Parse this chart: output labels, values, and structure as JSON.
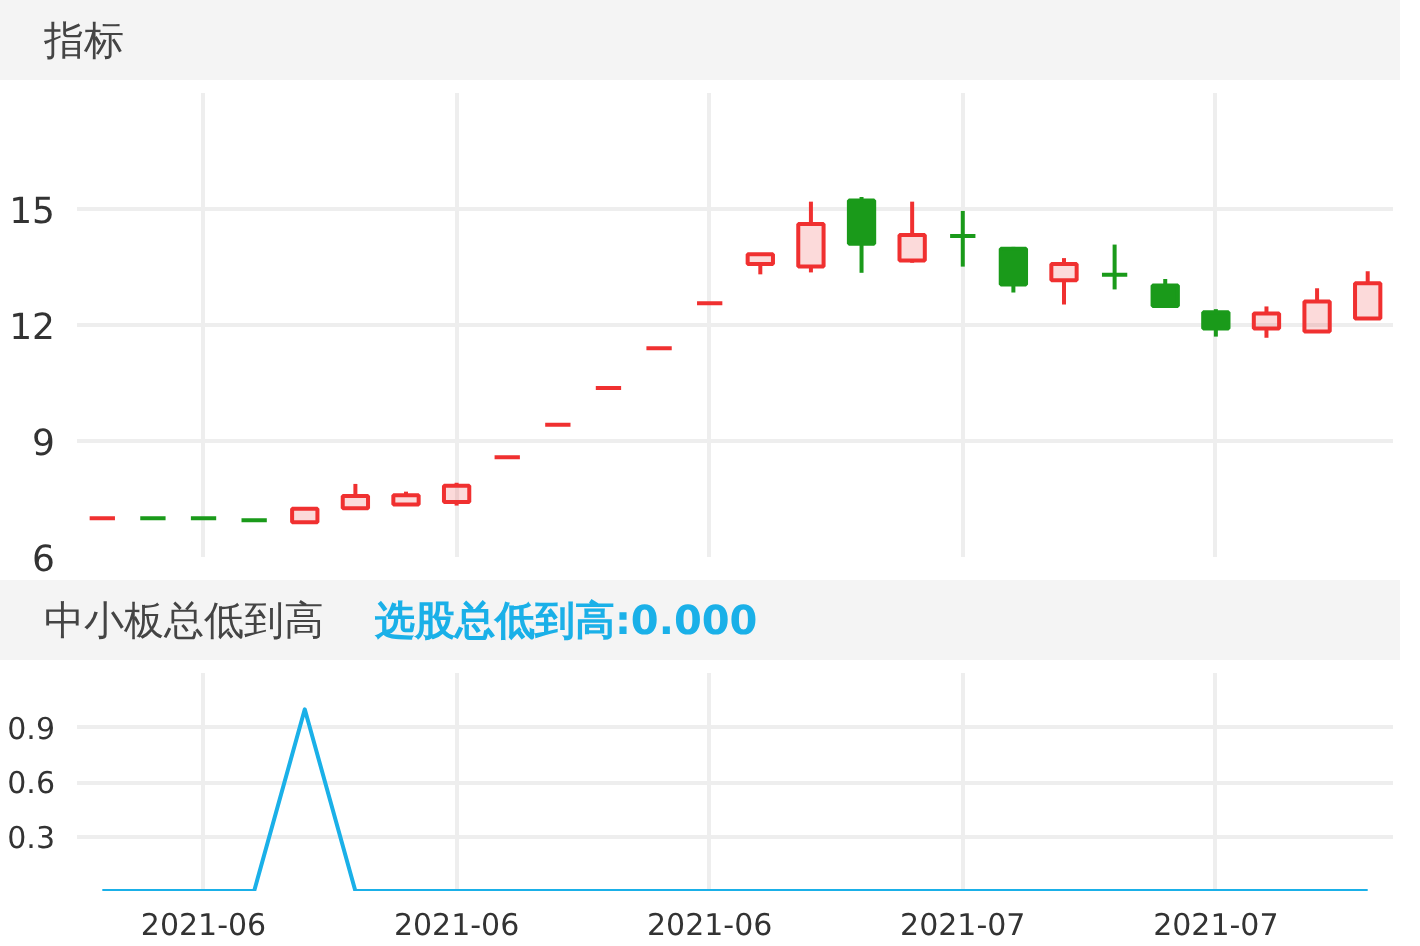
{
  "chart_data": [
    {
      "type": "candlestick",
      "title": "指标",
      "categories": [
        null,
        null,
        "2021-06",
        null,
        null,
        null,
        null,
        "2021-06",
        null,
        null,
        null,
        null,
        "2021-06",
        null,
        null,
        null,
        null,
        "2021-07",
        null,
        null,
        null,
        null,
        "2021-07",
        null,
        null,
        null
      ],
      "ohlc": [
        [
          7.0,
          7.0,
          7.0,
          7.0
        ],
        [
          7.0,
          7.0,
          7.0,
          7.0
        ],
        [
          7.0,
          7.0,
          7.0,
          7.0
        ],
        [
          6.95,
          6.95,
          6.95,
          6.95
        ],
        [
          6.9,
          7.25,
          6.9,
          7.25
        ],
        [
          7.26,
          7.89,
          7.26,
          7.58
        ],
        [
          7.36,
          7.69,
          7.36,
          7.6
        ],
        [
          7.42,
          7.92,
          7.33,
          7.84
        ],
        [
          8.58,
          8.58,
          8.58,
          8.58
        ],
        [
          9.42,
          9.42,
          9.42,
          9.42
        ],
        [
          10.37,
          10.37,
          10.37,
          10.37
        ],
        [
          11.4,
          11.4,
          11.4,
          11.4
        ],
        [
          12.56,
          12.56,
          12.56,
          12.56
        ],
        [
          13.58,
          13.83,
          13.31,
          13.83
        ],
        [
          13.51,
          15.19,
          13.36,
          14.61
        ],
        [
          15.22,
          15.31,
          13.35,
          14.1
        ],
        [
          13.67,
          15.19,
          13.61,
          14.33
        ],
        [
          14.3,
          14.95,
          13.51,
          14.3
        ],
        [
          13.97,
          14.02,
          12.84,
          13.05
        ],
        [
          13.16,
          13.73,
          12.53,
          13.58
        ],
        [
          13.3,
          14.08,
          12.92,
          13.3
        ],
        [
          13.02,
          13.19,
          12.49,
          12.49
        ],
        [
          12.33,
          12.41,
          11.7,
          11.91
        ],
        [
          11.91,
          12.48,
          11.67,
          12.3
        ],
        [
          11.83,
          12.95,
          11.8,
          12.61
        ],
        [
          12.17,
          13.39,
          12.17,
          13.08
        ]
      ],
      "colors": [
        "#f03030",
        "#1a9a1a",
        "#1a9a1a",
        "#1a9a1a",
        "#f03030",
        "#f03030",
        "#f03030",
        "#f03030",
        "#f03030",
        "#f03030",
        "#f03030",
        "#f03030",
        "#f03030",
        "#f03030",
        "#f03030",
        "#1a9a1a",
        "#f03030",
        "#1a9a1a",
        "#1a9a1a",
        "#f03030",
        "#1a9a1a",
        "#1a9a1a",
        "#1a9a1a",
        "#f03030",
        "#f03030",
        "#f03030"
      ],
      "ylim": [
        6,
        18
      ],
      "yticks": [
        6,
        9,
        12,
        15
      ],
      "tick_labels": "y",
      "grid": true
    },
    {
      "type": "line",
      "title": "中小板总低到高",
      "categories": [
        null,
        null,
        "2021-06",
        null,
        null,
        null,
        null,
        "2021-06",
        null,
        null,
        null,
        null,
        "2021-06",
        null,
        null,
        null,
        null,
        "2021-07",
        null,
        null,
        null,
        null,
        "2021-07",
        null,
        null,
        null
      ],
      "series": [
        {
          "name": "选股总低到高:0.000",
          "color": "#1ab0e8",
          "values": [
            0,
            0,
            0,
            0,
            1.0,
            0,
            0,
            0,
            0,
            0,
            0,
            0,
            0,
            0,
            0,
            0,
            0,
            0,
            0,
            0,
            0,
            0,
            0,
            0,
            0,
            0
          ]
        }
      ],
      "ylim": [
        0,
        1.2
      ],
      "yticks": [
        0.3,
        0.6,
        0.9
      ],
      "grid": true,
      "legend": "top",
      "marker": "none",
      "line_style": "solid"
    }
  ]
}
